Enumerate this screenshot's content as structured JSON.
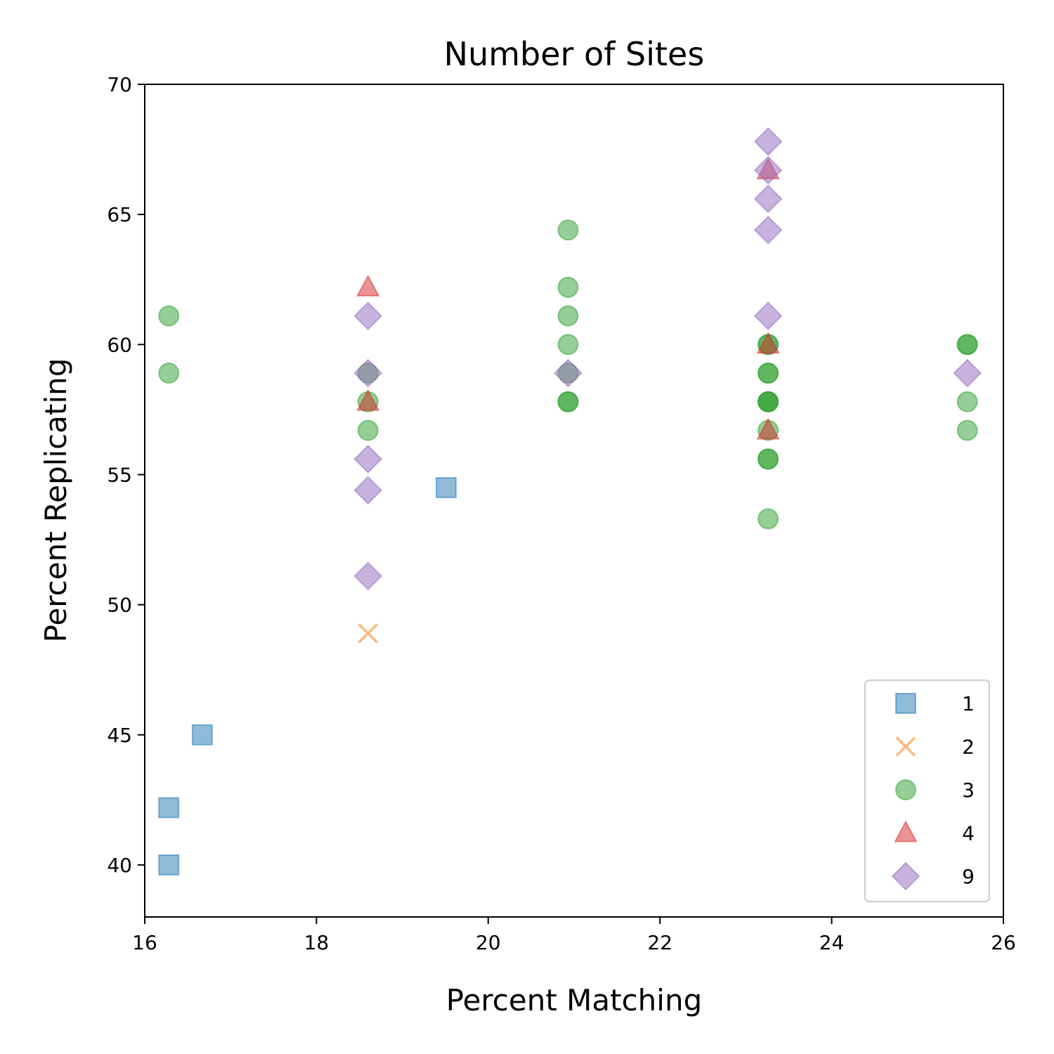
{
  "chart_data": {
    "type": "scatter",
    "title": "Number of Sites",
    "xlabel": "Percent Matching",
    "ylabel": "Percent Replicating",
    "xlim": [
      16,
      26
    ],
    "ylim": [
      38,
      70
    ],
    "xticks": [
      16,
      18,
      20,
      22,
      24,
      26
    ],
    "yticks": [
      40,
      45,
      50,
      55,
      60,
      65,
      70
    ],
    "grid": false,
    "legend_position": "lower-right",
    "series": [
      {
        "name": "1",
        "marker": "square",
        "color": "#1f77b4",
        "points": [
          [
            16.28,
            40.0
          ],
          [
            16.28,
            42.2
          ],
          [
            16.67,
            45.0
          ],
          [
            19.51,
            54.5
          ]
        ]
      },
      {
        "name": "2",
        "marker": "x",
        "color": "#ff7f0e",
        "points": [
          [
            18.6,
            48.9
          ]
        ]
      },
      {
        "name": "3",
        "marker": "circle",
        "color": "#2ca02c",
        "points": [
          [
            16.28,
            61.1
          ],
          [
            16.28,
            58.9
          ],
          [
            18.6,
            58.9
          ],
          [
            18.6,
            57.8
          ],
          [
            18.6,
            56.7
          ],
          [
            20.93,
            64.4
          ],
          [
            20.93,
            62.2
          ],
          [
            20.93,
            61.1
          ],
          [
            20.93,
            60.0
          ],
          [
            20.93,
            58.9
          ],
          [
            20.93,
            57.8
          ],
          [
            20.93,
            57.8
          ],
          [
            23.26,
            60.0
          ],
          [
            23.26,
            60.0
          ],
          [
            23.26,
            58.9
          ],
          [
            23.26,
            58.9
          ],
          [
            23.26,
            57.8
          ],
          [
            23.26,
            57.8
          ],
          [
            23.26,
            57.8
          ],
          [
            23.26,
            56.7
          ],
          [
            23.26,
            55.6
          ],
          [
            23.26,
            55.6
          ],
          [
            23.26,
            53.3
          ],
          [
            25.58,
            60.0
          ],
          [
            25.58,
            60.0
          ],
          [
            25.58,
            57.8
          ],
          [
            25.58,
            56.7
          ]
        ]
      },
      {
        "name": "4",
        "marker": "triangle",
        "color": "#d62728",
        "points": [
          [
            18.6,
            62.2
          ],
          [
            18.6,
            57.8
          ],
          [
            23.26,
            66.7
          ],
          [
            23.26,
            60.0
          ],
          [
            23.26,
            56.7
          ]
        ]
      },
      {
        "name": "9",
        "marker": "diamond",
        "color": "#9467bd",
        "points": [
          [
            18.6,
            61.1
          ],
          [
            18.6,
            58.9
          ],
          [
            18.6,
            55.6
          ],
          [
            18.6,
            54.4
          ],
          [
            18.6,
            51.1
          ],
          [
            20.93,
            58.9
          ],
          [
            23.26,
            67.8
          ],
          [
            23.26,
            66.7
          ],
          [
            23.26,
            65.6
          ],
          [
            23.26,
            64.4
          ],
          [
            23.26,
            61.1
          ],
          [
            25.58,
            58.9
          ]
        ]
      }
    ]
  }
}
